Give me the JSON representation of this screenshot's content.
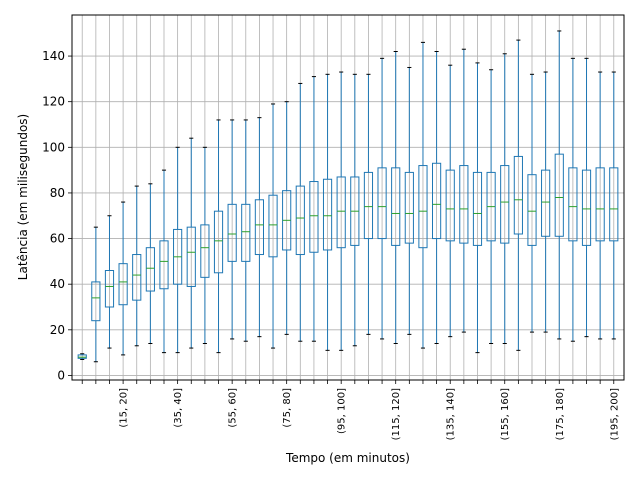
{
  "chart_data": {
    "type": "boxplot",
    "title": "",
    "xlabel": "Tempo (em minutos)",
    "ylabel": "Latência (em milisegundos)",
    "ylim": [
      -2,
      158
    ],
    "yticks": [
      0,
      20,
      40,
      60,
      80,
      100,
      120,
      140
    ],
    "grid": true,
    "colors": {
      "box": "#1f77b4",
      "median": "#2ca02c",
      "grid": "#b0b0b0",
      "axes": "#000000"
    },
    "categories": [
      "(0, 5]",
      "(5, 10]",
      "(10, 15]",
      "(15, 20]",
      "(20, 25]",
      "(25, 30]",
      "(30, 35]",
      "(35, 40]",
      "(40, 45]",
      "(45, 50]",
      "(50, 55]",
      "(55, 60]",
      "(60, 65]",
      "(65, 70]",
      "(70, 75]",
      "(75, 80]",
      "(80, 85]",
      "(85, 90]",
      "(90, 95]",
      "(95, 100]",
      "(100, 105]",
      "(105, 110]",
      "(110, 115]",
      "(115, 120]",
      "(120, 125]",
      "(125, 130]",
      "(130, 135]",
      "(135, 140]",
      "(140, 145]",
      "(145, 150]",
      "(150, 155]",
      "(155, 160]",
      "(160, 165]",
      "(165, 170]",
      "(170, 175]",
      "(175, 180]",
      "(180, 185]",
      "(185, 190]",
      "(190, 195]",
      "(195, 200]"
    ],
    "visible_tick_labels": [
      "(15, 20]",
      "(35, 40]",
      "(55, 60]",
      "(75, 80]",
      "(95, 100]",
      "(115, 120]",
      "(135, 140]",
      "(155, 160]",
      "(175, 180]",
      "(195, 200]"
    ],
    "boxes": [
      {
        "whislo": 7,
        "q1": 7.5,
        "med": 8,
        "q3": 9,
        "whishi": 9.5
      },
      {
        "whislo": 6,
        "q1": 24,
        "med": 34,
        "q3": 41,
        "whishi": 65
      },
      {
        "whislo": 12,
        "q1": 30,
        "med": 39,
        "q3": 46,
        "whishi": 70
      },
      {
        "whislo": 9,
        "q1": 31,
        "med": 41,
        "q3": 49,
        "whishi": 76
      },
      {
        "whislo": 13,
        "q1": 33,
        "med": 44,
        "q3": 53,
        "whishi": 83
      },
      {
        "whislo": 14,
        "q1": 37,
        "med": 47,
        "q3": 56,
        "whishi": 84
      },
      {
        "whislo": 10,
        "q1": 38,
        "med": 50,
        "q3": 59,
        "whishi": 90
      },
      {
        "whislo": 10,
        "q1": 40,
        "med": 52,
        "q3": 64,
        "whishi": 100
      },
      {
        "whislo": 12,
        "q1": 39,
        "med": 54,
        "q3": 65,
        "whishi": 104
      },
      {
        "whislo": 14,
        "q1": 43,
        "med": 56,
        "q3": 66,
        "whishi": 100
      },
      {
        "whislo": 10,
        "q1": 45,
        "med": 59,
        "q3": 72,
        "whishi": 112
      },
      {
        "whislo": 16,
        "q1": 50,
        "med": 62,
        "q3": 75,
        "whishi": 112
      },
      {
        "whislo": 15,
        "q1": 50,
        "med": 63,
        "q3": 75,
        "whishi": 112
      },
      {
        "whislo": 17,
        "q1": 53,
        "med": 66,
        "q3": 77,
        "whishi": 113
      },
      {
        "whislo": 12,
        "q1": 52,
        "med": 66,
        "q3": 79,
        "whishi": 119
      },
      {
        "whislo": 18,
        "q1": 55,
        "med": 68,
        "q3": 81,
        "whishi": 120
      },
      {
        "whislo": 15,
        "q1": 53,
        "med": 69,
        "q3": 83,
        "whishi": 128
      },
      {
        "whislo": 15,
        "q1": 54,
        "med": 70,
        "q3": 85,
        "whishi": 131
      },
      {
        "whislo": 11,
        "q1": 55,
        "med": 70,
        "q3": 86,
        "whishi": 132
      },
      {
        "whislo": 11,
        "q1": 56,
        "med": 72,
        "q3": 87,
        "whishi": 133
      },
      {
        "whislo": 13,
        "q1": 57,
        "med": 72,
        "q3": 87,
        "whishi": 132
      },
      {
        "whislo": 18,
        "q1": 60,
        "med": 74,
        "q3": 89,
        "whishi": 132
      },
      {
        "whislo": 16,
        "q1": 60,
        "med": 74,
        "q3": 91,
        "whishi": 139
      },
      {
        "whislo": 14,
        "q1": 57,
        "med": 71,
        "q3": 91,
        "whishi": 142
      },
      {
        "whislo": 18,
        "q1": 58,
        "med": 71,
        "q3": 89,
        "whishi": 135
      },
      {
        "whislo": 12,
        "q1": 56,
        "med": 72,
        "q3": 92,
        "whishi": 146
      },
      {
        "whislo": 14,
        "q1": 60,
        "med": 75,
        "q3": 93,
        "whishi": 142
      },
      {
        "whislo": 17,
        "q1": 59,
        "med": 73,
        "q3": 90,
        "whishi": 136
      },
      {
        "whislo": 19,
        "q1": 58,
        "med": 73,
        "q3": 92,
        "whishi": 143
      },
      {
        "whislo": 10,
        "q1": 57,
        "med": 71,
        "q3": 89,
        "whishi": 137
      },
      {
        "whislo": 14,
        "q1": 59,
        "med": 74,
        "q3": 89,
        "whishi": 134
      },
      {
        "whislo": 14,
        "q1": 58,
        "med": 76,
        "q3": 92,
        "whishi": 141
      },
      {
        "whislo": 11,
        "q1": 62,
        "med": 77,
        "q3": 96,
        "whishi": 147
      },
      {
        "whislo": 19,
        "q1": 57,
        "med": 72,
        "q3": 88,
        "whishi": 132
      },
      {
        "whislo": 19,
        "q1": 61,
        "med": 76,
        "q3": 90,
        "whishi": 133
      },
      {
        "whislo": 16,
        "q1": 61,
        "med": 78,
        "q3": 97,
        "whishi": 151
      },
      {
        "whislo": 15,
        "q1": 59,
        "med": 74,
        "q3": 91,
        "whishi": 139
      },
      {
        "whislo": 17,
        "q1": 57,
        "med": 73,
        "q3": 90,
        "whishi": 139
      },
      {
        "whislo": 16,
        "q1": 59,
        "med": 73,
        "q3": 91,
        "whishi": 133
      },
      {
        "whislo": 16,
        "q1": 59,
        "med": 73,
        "q3": 91,
        "whishi": 133
      }
    ]
  }
}
